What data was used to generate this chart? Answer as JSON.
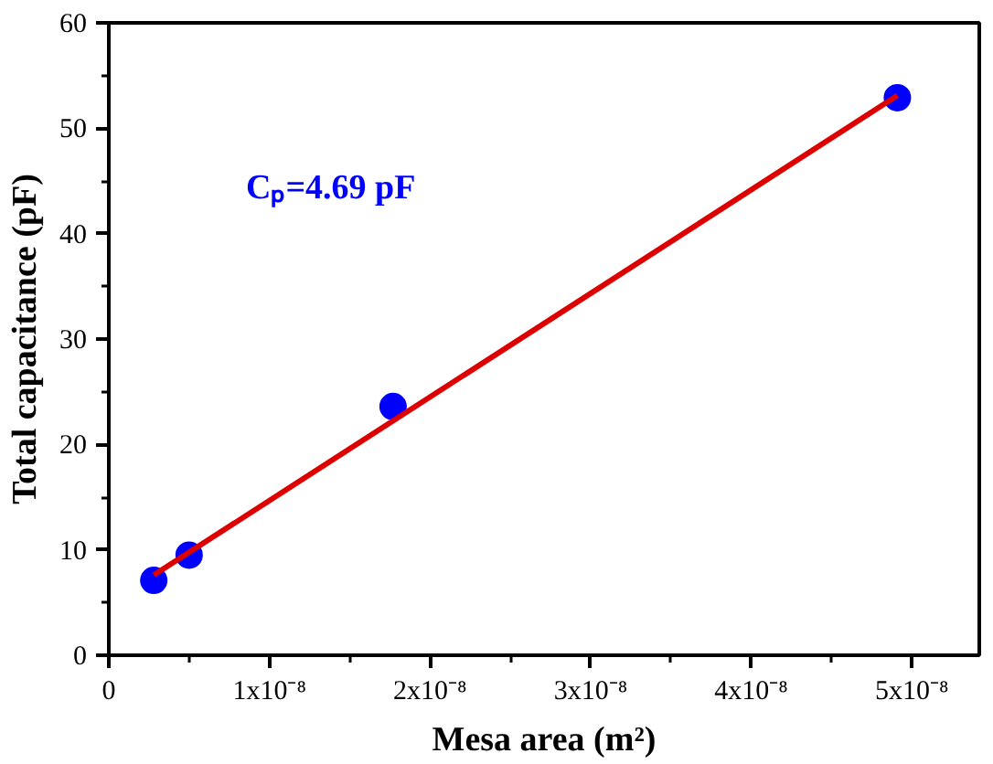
{
  "chart_data": {
    "type": "scatter",
    "xlabel": "Mesa area (m²)",
    "ylabel": "Total capacitance (pF)",
    "annotations": [
      "Cₚ=4.69 pF"
    ],
    "x": [
      2.8e-09,
      5e-09,
      1.77e-08,
      4.91e-08
    ],
    "series": [
      {
        "color": "#0000ff",
        "values": [
          7.1,
          9.5,
          23.6,
          52.9
        ],
        "marker": "circle"
      },
      {
        "type": "line",
        "color": "#dd0000",
        "x": [
          2.8e-09,
          4.91e-08
        ],
        "values": [
          7.6,
          53.1
        ],
        "line_style": "solid"
      }
    ],
    "xlim": [
      0,
      5.42e-08
    ],
    "ylim": [
      0,
      60
    ],
    "xticks": [
      0,
      {
        "value": 1e-08,
        "label": "1x10⁻⁸"
      },
      {
        "value": 2e-08,
        "label": "2x10⁻⁸"
      },
      {
        "value": 3e-08,
        "label": "3x10⁻⁸"
      },
      {
        "value": 4e-08,
        "label": "4x10⁻⁸"
      },
      {
        "value": 5e-08,
        "label": "5x10⁻⁸"
      }
    ],
    "yticks": [
      0,
      10,
      20,
      30,
      40,
      50,
      60
    ],
    "grid": false
  }
}
